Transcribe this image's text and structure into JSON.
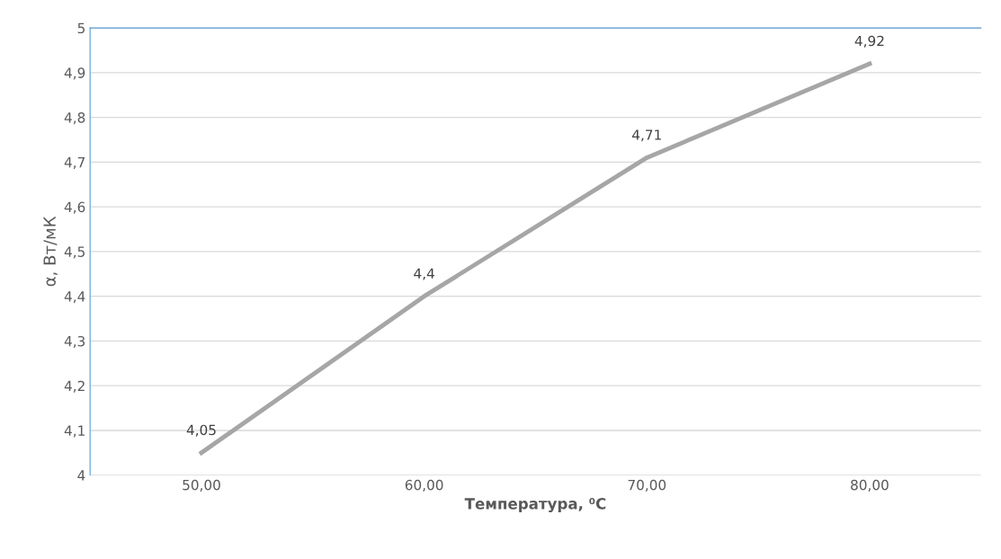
{
  "chart_data": {
    "type": "line",
    "xlabel": "Температура, ⁰C",
    "ylabel": "α, Вт/мК",
    "categories": [
      "50,00",
      "60,00",
      "70,00",
      "80,00"
    ],
    "series": [
      {
        "color": "#a6a6a6",
        "values": [
          4.05,
          4.4,
          4.71,
          4.92
        ],
        "value_labels": [
          "4,05",
          "4,4",
          "4,71",
          "4,92"
        ]
      }
    ],
    "ylim": [
      4,
      5
    ],
    "yticks": [
      4,
      {
        "value": 4.1,
        "label": "4,1"
      },
      {
        "value": 4.2,
        "label": "4,2"
      },
      {
        "value": 4.3,
        "label": "4,3"
      },
      {
        "value": 4.4,
        "label": "4,4"
      },
      {
        "value": 4.5,
        "label": "4,5"
      },
      {
        "value": 4.6,
        "label": "4,6"
      },
      {
        "value": 4.7,
        "label": "4,7"
      },
      {
        "value": 4.8,
        "label": "4,8"
      },
      {
        "value": 4.9,
        "label": "4,9"
      },
      5
    ],
    "grid": "y",
    "legend": false,
    "marker": "none",
    "line_style": "solid"
  }
}
